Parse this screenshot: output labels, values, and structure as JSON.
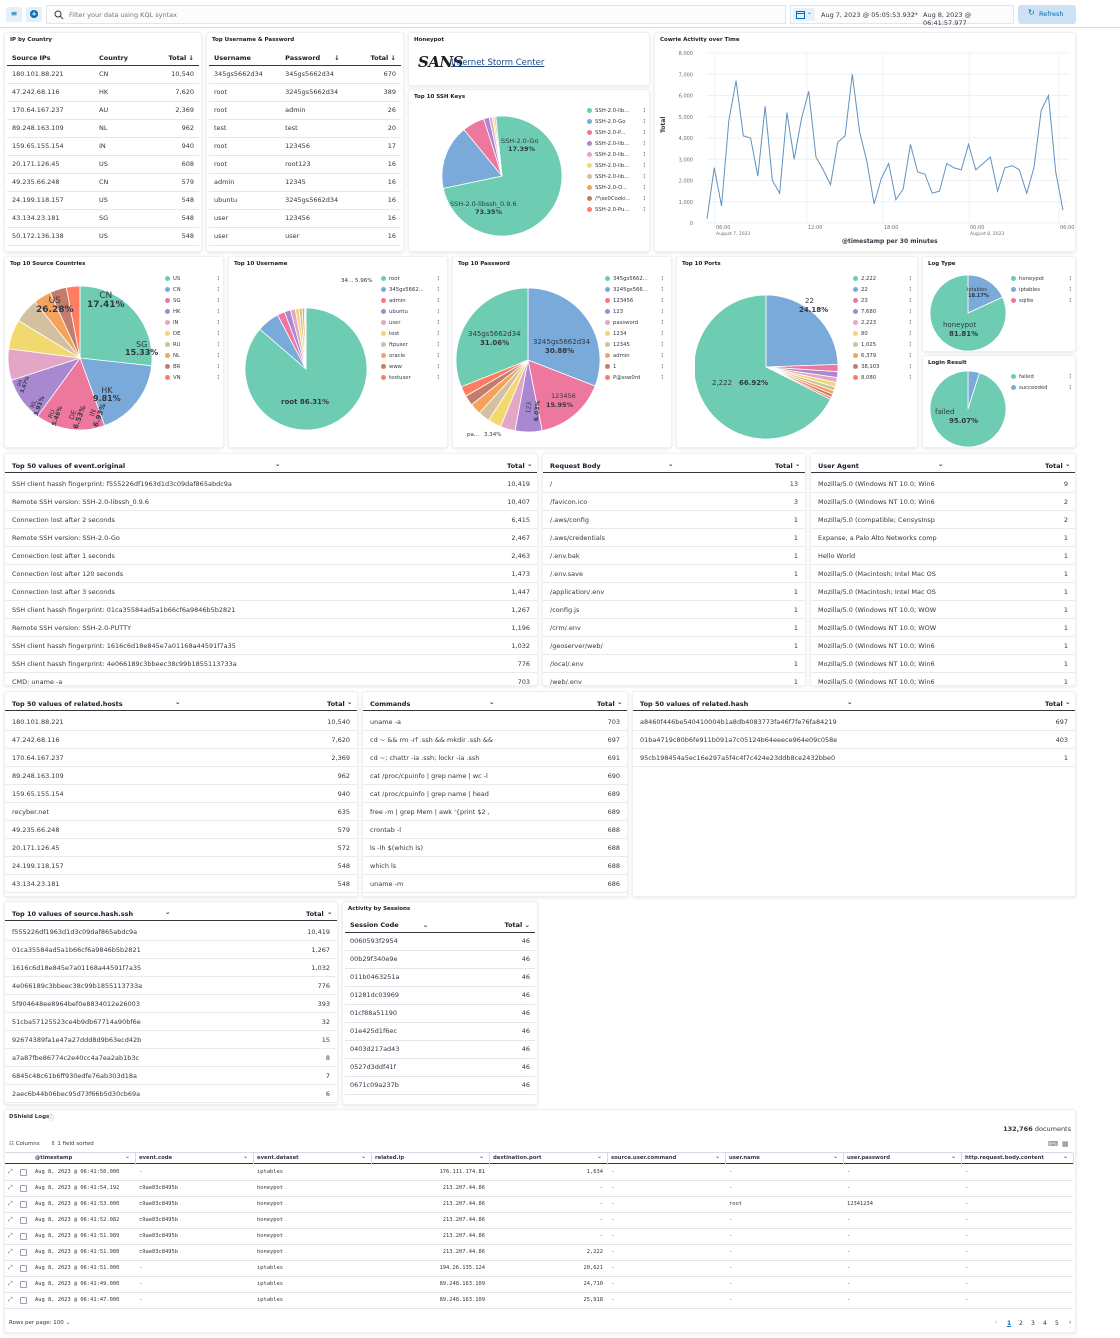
{
  "topbar": {
    "query_placeholder": "Filter your data using KQL syntax",
    "time_start": "Aug 7, 2023 @ 05:05:53.932",
    "time_end": "Aug 8, 2023 @ 06:41:57.977",
    "arrow": "→",
    "refresh_label": "Refresh"
  },
  "ip_country": {
    "title": "IP by Country",
    "headers": [
      "Source IPs",
      "Country",
      "Total ↓"
    ],
    "rows": [
      [
        "180.101.88.221",
        "CN",
        "10,540"
      ],
      [
        "47.242.68.116",
        "HK",
        "7,620"
      ],
      [
        "170.64.167.237",
        "AU",
        "2,369"
      ],
      [
        "89.248.163.109",
        "NL",
        "962"
      ],
      [
        "159.65.155.154",
        "IN",
        "940"
      ],
      [
        "20.171.126.45",
        "US",
        "608"
      ],
      [
        "49.235.66.248",
        "CN",
        "579"
      ],
      [
        "24.199.118.157",
        "US",
        "548"
      ],
      [
        "43.134.23.181",
        "SG",
        "548"
      ],
      [
        "50.172.136.138",
        "US",
        "548"
      ]
    ]
  },
  "userpass": {
    "title": "Top Username & Password",
    "headers": [
      "Username",
      "Password",
      "↓",
      "Total ↓"
    ],
    "rows": [
      [
        "345gs5662d34",
        "345gs5662d34",
        "670"
      ],
      [
        "root",
        "3245gs5662d34",
        "389"
      ],
      [
        "root",
        "admin",
        "26"
      ],
      [
        "test",
        "test",
        "20"
      ],
      [
        "root",
        "123456",
        "17"
      ],
      [
        "root",
        "root123",
        "16"
      ],
      [
        "admin",
        "12345",
        "16"
      ],
      [
        "ubuntu",
        "3245gs5662d34",
        "16"
      ],
      [
        "user",
        "123456",
        "16"
      ],
      [
        "user",
        "user",
        "16"
      ]
    ]
  },
  "honeypot": {
    "title": "Honeypot",
    "logo": "SANS",
    "logo_sub": "Internet Storm Center"
  },
  "sshkeys": {
    "title": "Top 10 SSH Keys",
    "label1": "SSH-2.0-Go",
    "pct1": "17.39%",
    "label2": "SSH-2.0-libssh_0.9.6",
    "pct2": "73.35%",
    "legend": [
      "SSH-2.0-lib...",
      "SSH-2.0-Go",
      "SSH-2.0-P...",
      "SSH-2.0-lib...",
      "SSH-2.0-lib...",
      "SSH-2.0-lib...",
      "SSH-2.0-lib...",
      "SSH-2.0-O...",
      "/*\\xe0Cooki...",
      "SSH-2.0-Pu..."
    ]
  },
  "cowrie": {
    "title": "Cowrie Activity over Time",
    "ylabel": "Total",
    "xlabel": "@timestamp per 30 minutes",
    "yticks": [
      "8,000",
      "7,000",
      "6,000",
      "5,000",
      "4,000",
      "3,000",
      "2,000",
      "1,000",
      "0"
    ],
    "xticks": [
      "06:00",
      "12:00",
      "18:00",
      "00:00",
      "06:00"
    ],
    "xsub": [
      "August 7, 2023",
      "August 8, 2023"
    ],
    "chart_data": {
      "type": "line",
      "ylim": [
        0,
        8000
      ],
      "values": [
        200,
        2600,
        800,
        4800,
        6700,
        4100,
        4000,
        2200,
        5500,
        2000,
        1400,
        5200,
        3000,
        4900,
        6200,
        3100,
        2500,
        1800,
        3800,
        4100,
        7000,
        4300,
        2900,
        900,
        2100,
        2800,
        1100,
        1600,
        3700,
        2400,
        2300,
        1400,
        1500,
        2800,
        2600,
        2500,
        3700,
        2500,
        2800,
        3100,
        1500,
        2600,
        2700,
        2500,
        1400,
        2600,
        5300,
        6000,
        2400,
        600
      ]
    }
  },
  "countries": {
    "title": "Top 10 Source Countries",
    "labels": [
      [
        "US",
        "26.28%"
      ],
      [
        "CN",
        "17.41%"
      ],
      [
        "SG",
        "15.33%"
      ],
      [
        "HK",
        "9.81%"
      ],
      [
        "IN",
        "6.93%"
      ],
      [
        "DE",
        "6.53%"
      ],
      [
        "RU",
        "5.46%"
      ],
      [
        "NL",
        "3.91%"
      ],
      [
        "BR",
        "3.67%"
      ]
    ],
    "legend": [
      "US",
      "CN",
      "SG",
      "HK",
      "IN",
      "DE",
      "RU",
      "NL",
      "BR",
      "VN"
    ]
  },
  "usernames": {
    "title": "Top 10 Username",
    "label_top": "34... 5.96%",
    "label_main": "root 86.31%",
    "legend": [
      "root",
      "345gs5662...",
      "admin",
      "ubuntu",
      "user",
      "test",
      "ftpuser",
      "oracle",
      "www",
      "testuser"
    ]
  },
  "passwords": {
    "title": "Top 10 Password",
    "l1": "345gs5662d34",
    "p1": "31.06%",
    "l2": "3245gs5662d34",
    "p2": "30.88%",
    "l3": "123456",
    "p3": "15.95%",
    "l4": "123",
    "p4": "6.03%",
    "l5": "pa...",
    "p5": "3.34%",
    "legend": [
      "345gs5662...",
      "3245gs566...",
      "123456",
      "123",
      "password",
      "1234",
      "12345",
      "admin",
      "1",
      "P@ssw0rd"
    ]
  },
  "ports": {
    "title": "Top 10 Ports",
    "l1": "22",
    "p1": "24.18%",
    "l2": "2,222",
    "p2": "66.92%",
    "legend": [
      "2,222",
      "22",
      "23",
      "7,680",
      "2,223",
      "80",
      "1,025",
      "6,379",
      "38,103",
      "8,080"
    ]
  },
  "logtype": {
    "title": "Log Type",
    "l1": "iptables",
    "p1": "18.17%",
    "l2": "honeypot",
    "p2": "81.81%",
    "legend": [
      "honeypot",
      "iptables",
      "sqlite"
    ]
  },
  "login": {
    "title": "Login Result",
    "l1": "failed",
    "p1": "95.07%",
    "legend": [
      "failed",
      "succeeded"
    ]
  },
  "event_original": {
    "title": "Top 50 values of event.original",
    "total": "Total",
    "rows": [
      [
        "SSH client hassh fingerprint: f555226df1963d1d3c09daf865abdc9a",
        "10,419"
      ],
      [
        "Remote SSH version: SSH-2.0-libssh_0.9.6",
        "10,407"
      ],
      [
        "Connection lost after 2 seconds",
        "6,415"
      ],
      [
        "Remote SSH version: SSH-2.0-Go",
        "2,467"
      ],
      [
        "Connection lost after 1 seconds",
        "2,463"
      ],
      [
        "Connection lost after 120 seconds",
        "1,473"
      ],
      [
        "Connection lost after 3 seconds",
        "1,447"
      ],
      [
        "SSH client hassh fingerprint: 01ca35584ad5a1b66cf6a9846b5b2821",
        "1,267"
      ],
      [
        "Remote SSH version: SSH-2.0-PUTTY",
        "1,196"
      ],
      [
        "SSH client hassh fingerprint: 1616c6d18e845e7a01168a44591f7a35",
        "1,032"
      ],
      [
        "SSH client hassh fingerprint: 4e066189c3bbeec38c99b1855113733a",
        "776"
      ],
      [
        "CMD: uname -a",
        "703"
      ]
    ]
  },
  "request_body": {
    "title": "Request Body",
    "total": "Total",
    "rows": [
      [
        "/",
        "13"
      ],
      [
        "/favicon.ico",
        "3"
      ],
      [
        "/.aws/config",
        "1"
      ],
      [
        "/.aws/credentials",
        "1"
      ],
      [
        "/.env.bak",
        "1"
      ],
      [
        "/.env.save",
        "1"
      ],
      [
        "/application/.env",
        "1"
      ],
      [
        "/config.js",
        "1"
      ],
      [
        "/crm/.env",
        "1"
      ],
      [
        "/geoserver/web/",
        "1"
      ],
      [
        "/local/.env",
        "1"
      ],
      [
        "/web/.env",
        "1"
      ]
    ]
  },
  "user_agent": {
    "title": "User Agent",
    "total": "Total",
    "rows": [
      [
        "Mozilla/5.0 (Windows NT 10.0; Win6",
        "9"
      ],
      [
        "Mozilla/5.0 (Windows NT 10.0; Win6",
        "2"
      ],
      [
        "Mozilla/5.0 (compatible; CensysInsp",
        "2"
      ],
      [
        "Expanse, a Palo Alto Networks comp",
        "1"
      ],
      [
        "Hello World",
        "1"
      ],
      [
        "Mozilla/5.0 (Macintosh; Intel Mac OS",
        "1"
      ],
      [
        "Mozilla/5.0 (Macintosh; Intel Mac OS",
        "1"
      ],
      [
        "Mozilla/5.0 (Windows NT 10.0; WOW",
        "1"
      ],
      [
        "Mozilla/5.0 (Windows NT 10.0; WOW",
        "1"
      ],
      [
        "Mozilla/5.0 (Windows NT 10.0; Win6",
        "1"
      ],
      [
        "Mozilla/5.0 (Windows NT 10.0; Win6",
        "1"
      ],
      [
        "Mozilla/5.0 (Windows NT 10.0; Win6",
        "1"
      ]
    ]
  },
  "related_hosts": {
    "title": "Top 50 values of related.hosts",
    "total": "Total",
    "rows": [
      [
        "180.101.88.221",
        "10,540"
      ],
      [
        "47.242.68.116",
        "7,620"
      ],
      [
        "170.64.167.237",
        "2,369"
      ],
      [
        "89.248.163.109",
        "962"
      ],
      [
        "159.65.155.154",
        "940"
      ],
      [
        "recyber.net",
        "635"
      ],
      [
        "49.235.66.248",
        "579"
      ],
      [
        "20.171.126.45",
        "572"
      ],
      [
        "24.199.118.157",
        "548"
      ],
      [
        "43.134.23.181",
        "548"
      ]
    ]
  },
  "commands": {
    "title": "Commands",
    "total": "Total",
    "rows": [
      [
        "uname -a",
        "703"
      ],
      [
        "cd ~ && rm -rf .ssh && mkdir .ssh &&",
        "697"
      ],
      [
        "cd ~; chattr -ia .ssh; lockr -ia .ssh",
        "691"
      ],
      [
        "cat /proc/cpuinfo | grep name | wc -l",
        "690"
      ],
      [
        "cat /proc/cpuinfo | grep name | head",
        "689"
      ],
      [
        "free -m | grep Mem | awk '{print $2 ,",
        "689"
      ],
      [
        "crontab -l",
        "688"
      ],
      [
        "ls -lh $(which ls)",
        "688"
      ],
      [
        "which ls",
        "688"
      ],
      [
        "uname -m",
        "686"
      ]
    ]
  },
  "related_hash": {
    "title": "Top 50 values of related.hash",
    "total": "Total",
    "rows": [
      [
        "a8460f446be540410004b1a8db4083773fa46f7fe76fa84219",
        "697"
      ],
      [
        "01ba4719c80b6fe911b091a7c05124b64eeece964e09c058e",
        "403"
      ],
      [
        "95cb198454a5ec16e297a5f4c4f7c424e23ddb8ce2432bbe0",
        "1"
      ]
    ]
  },
  "hash_ssh": {
    "title": "Top 10 values of source.hash.ssh",
    "total": "Total",
    "rows": [
      [
        "f555226df1963d1d3c09daf865abdc9a",
        "10,419"
      ],
      [
        "01ca35584ad5a1b66cf6a9846b5b2821",
        "1,267"
      ],
      [
        "1616c6d18e845e7a01168a44591f7a35",
        "1,032"
      ],
      [
        "4e066189c3bbeec38c99b1855113733a",
        "776"
      ],
      [
        "5f904648ee8964bef0e8834012e26003",
        "393"
      ],
      [
        "51cba57125523ce4b9db67714a90bf6e",
        "32"
      ],
      [
        "92674389fa1e47a27ddd8d9b63ecd42b",
        "15"
      ],
      [
        "a7a87fbe86774c2e40cc4a7ea2ab1b3c",
        "8"
      ],
      [
        "6845c48c61b6ff930edfe76ab303d18a",
        "7"
      ],
      [
        "2aec6b44b06bec95d73f66b5d30cb69a",
        "6"
      ]
    ]
  },
  "sessions": {
    "title": "Activity by Sessions",
    "headers": [
      "Session Code",
      "Total"
    ],
    "rows": [
      [
        "0060593f2954",
        "46"
      ],
      [
        "00b29f340e9e",
        "46"
      ],
      [
        "011b0463251a",
        "46"
      ],
      [
        "01281dc03969",
        "46"
      ],
      [
        "01cf88a51190",
        "46"
      ],
      [
        "01e425d1f6ec",
        "46"
      ],
      [
        "0403d217ad43",
        "46"
      ],
      [
        "0527d3ddf41f",
        "46"
      ],
      [
        "0671c09a237b",
        "46"
      ]
    ]
  },
  "logs": {
    "title": "DShield Logs",
    "documents_count": "132,766",
    "documents_label": "documents",
    "columns_label": "Columns",
    "sorted_label": "1 field sorted",
    "headers": [
      "@timestamp",
      "event.code",
      "event.dataset",
      "related.ip",
      "destination.port",
      "source.user.command",
      "user.name",
      "user.password",
      "http.request.body.content"
    ],
    "rows": [
      [
        "Aug 8, 2023 @ 06:41:56.000",
        "-",
        "iptables",
        "176.111.174.81",
        "1,634",
        "-",
        "-",
        "-",
        "-"
      ],
      [
        "Aug 8, 2023 @ 06:41:54.192",
        "c9ae83c8495b",
        "honeypot",
        "213.207.44.86",
        "-",
        "-",
        "-",
        "-",
        "-"
      ],
      [
        "Aug 8, 2023 @ 06:41:53.000",
        "c9ae83c8495b",
        "honeypot",
        "213.207.44.86",
        "-",
        "-",
        "root",
        "12341234",
        "-"
      ],
      [
        "Aug 8, 2023 @ 06:41:52.082",
        "c9ae83c8495b",
        "honeypot",
        "213.207.44.86",
        "-",
        "-",
        "-",
        "-",
        "-"
      ],
      [
        "Aug 8, 2023 @ 06:41:51.989",
        "c9ae83c8495b",
        "honeypot",
        "213.207.44.86",
        "-",
        "-",
        "-",
        "-",
        "-"
      ],
      [
        "Aug 8, 2023 @ 06:41:51.980",
        "c9ae83c8495b",
        "honeypot",
        "213.207.44.86",
        "2,222",
        "-",
        "-",
        "-",
        "-"
      ],
      [
        "Aug 8, 2023 @ 06:41:51.000",
        "-",
        "iptables",
        "194.26.135.124",
        "20,621",
        "-",
        "-",
        "-",
        "-"
      ],
      [
        "Aug 8, 2023 @ 06:41:49.000",
        "-",
        "iptables",
        "89.248.163.109",
        "24,710",
        "-",
        "-",
        "-",
        "-"
      ],
      [
        "Aug 8, 2023 @ 06:41:47.000",
        "-",
        "iptables",
        "89.248.163.109",
        "25,918",
        "-",
        "-",
        "-",
        "-"
      ]
    ],
    "rows_per_page": "Rows per page: 100",
    "pages": [
      "1",
      "2",
      "3",
      "4",
      "5"
    ]
  },
  "colors": {
    "teal": "#6dccb1",
    "blue": "#79aad9",
    "pink": "#ee789d",
    "purple": "#a987d1",
    "rose": "#e4a6c7",
    "yellow": "#f1d86f",
    "tan": "#d2c0a0",
    "orange": "#f5a35c",
    "brown": "#c47c6c",
    "red": "#ff7e62"
  }
}
